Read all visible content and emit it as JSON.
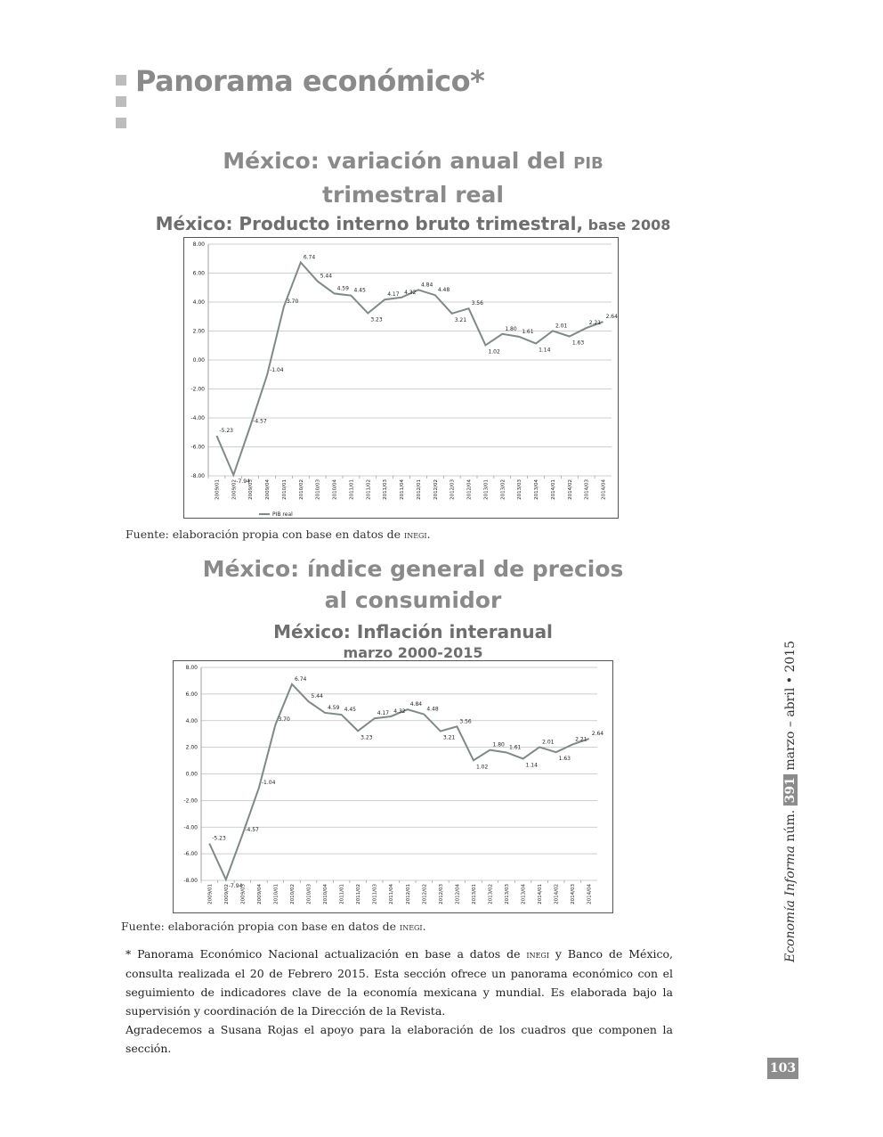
{
  "section_title": "Panorama económico*",
  "chart1_heading": {
    "line1_main": "México: variación anual del ",
    "line1_small": "PIB",
    "line2": "trimestral real"
  },
  "chart1_subtitle": {
    "main": "México: Producto interno bruto trimestral,",
    "small": " base 2008"
  },
  "chart2_heading": {
    "line1": "México: índice general de precios",
    "line2": "al consumidor"
  },
  "chart2_subtitle": {
    "line1": "México: Inflación interanual",
    "line2": "marzo 2000-2015"
  },
  "source_note": {
    "prefix": "Fuente: elaboración propia con base en datos de ",
    "org": "inegi",
    "suffix": "."
  },
  "footnote": {
    "p1_a": "* Panorama Económico Nacional actualización en base a datos de ",
    "p1_org": "inegi",
    "p1_b": " y Banco de México, consulta realizada el 20 de Febrero 2015. Esta sección ofrece un panorama económico con el seguimiento de indicadores clave de la economía mexicana y mundial. Es elaborada bajo la supervisión y coordinación de la Dirección de la Revista.",
    "p2": "Agradecemos a Susana Rojas el apoyo para la elaboración de los cuadros que componen la sección."
  },
  "running_head": {
    "journal": "Economía Informa",
    "num_label": " núm. ",
    "issue": "391",
    "date": " marzo – abril • 2015"
  },
  "page_number": "103",
  "colors": {
    "heading_gray": "#8a8a8a",
    "line": "#7f8a88",
    "grid": "#bfbfbf"
  },
  "chart_data": [
    {
      "type": "line",
      "categories": [
        "2009/01",
        "2009/02",
        "2009/03",
        "2009/04",
        "2010/01",
        "2010/02",
        "2010/03",
        "2010/04",
        "2011/01",
        "2011/02",
        "2011/03",
        "2011/04",
        "2012/01",
        "2012/02",
        "2012/03",
        "2012/04",
        "2013/01",
        "2013/02",
        "2013/03",
        "2013/04",
        "2014/01",
        "2014/02",
        "2014/03",
        "2014/04"
      ],
      "series": [
        {
          "name": "PIB real",
          "values": [
            -5.23,
            -7.94,
            -4.57,
            -1.04,
            3.7,
            6.74,
            5.44,
            4.59,
            4.45,
            3.23,
            4.17,
            4.32,
            4.84,
            4.48,
            3.21,
            3.56,
            1.02,
            1.8,
            1.61,
            1.14,
            2.01,
            1.63,
            2.21,
            2.64
          ]
        }
      ],
      "data_labels": [
        "-5.23",
        "-7.94",
        "-4.57",
        "-1.04",
        "3.70",
        "6.74",
        "5.44",
        "4.59",
        "4.45",
        "3.23",
        "4.17",
        "4.32",
        "4.84",
        "4.48",
        "3.21",
        "3.56",
        "1.02",
        "1.80",
        "1.61",
        "1.14",
        "2.01",
        "1.63",
        "2.21",
        "2.64"
      ],
      "ylim": [
        -8,
        8
      ],
      "yticks": [
        "-8.00",
        "-6.00",
        "-4.00",
        "-2.00",
        "0.00",
        "2.00",
        "4.00",
        "6.00",
        "8.00"
      ],
      "grid": true,
      "legend": "bottom-left"
    },
    {
      "type": "line",
      "categories": [
        "2009/01",
        "2009/02",
        "2009/03",
        "2009/04",
        "2010/01",
        "2010/02",
        "2010/03",
        "2010/04",
        "2011/01",
        "2011/02",
        "2011/03",
        "2011/04",
        "2012/01",
        "2012/02",
        "2012/03",
        "2012/04",
        "2013/01",
        "2013/02",
        "2013/03",
        "2013/04",
        "2014/01",
        "2014/02",
        "2014/03",
        "2014/04"
      ],
      "series": [
        {
          "values": [
            -5.23,
            -7.94,
            -4.57,
            -1.04,
            3.7,
            6.74,
            5.44,
            4.59,
            4.45,
            3.23,
            4.17,
            4.32,
            4.84,
            4.48,
            3.21,
            3.56,
            1.02,
            1.8,
            1.61,
            1.14,
            2.01,
            1.63,
            2.21,
            2.64
          ]
        }
      ],
      "data_labels": [
        "-5.23",
        "-7.94",
        "-4.57",
        "-1.04",
        "3.70",
        "6.74",
        "5.44",
        "4.59",
        "4.45",
        "3.23",
        "4.17",
        "4.32",
        "4.84",
        "4.48",
        "3.21",
        "3.56",
        "1.02",
        "1.80",
        "1.61",
        "1.14",
        "2.01",
        "1.63",
        "2.21",
        "2.64"
      ],
      "ylim": [
        -8,
        8
      ],
      "yticks": [
        "-8.00",
        "-6.00",
        "-4.00",
        "-2.00",
        "0.00",
        "2.00",
        "4.00",
        "6.00",
        "8.00"
      ],
      "grid": true
    }
  ]
}
